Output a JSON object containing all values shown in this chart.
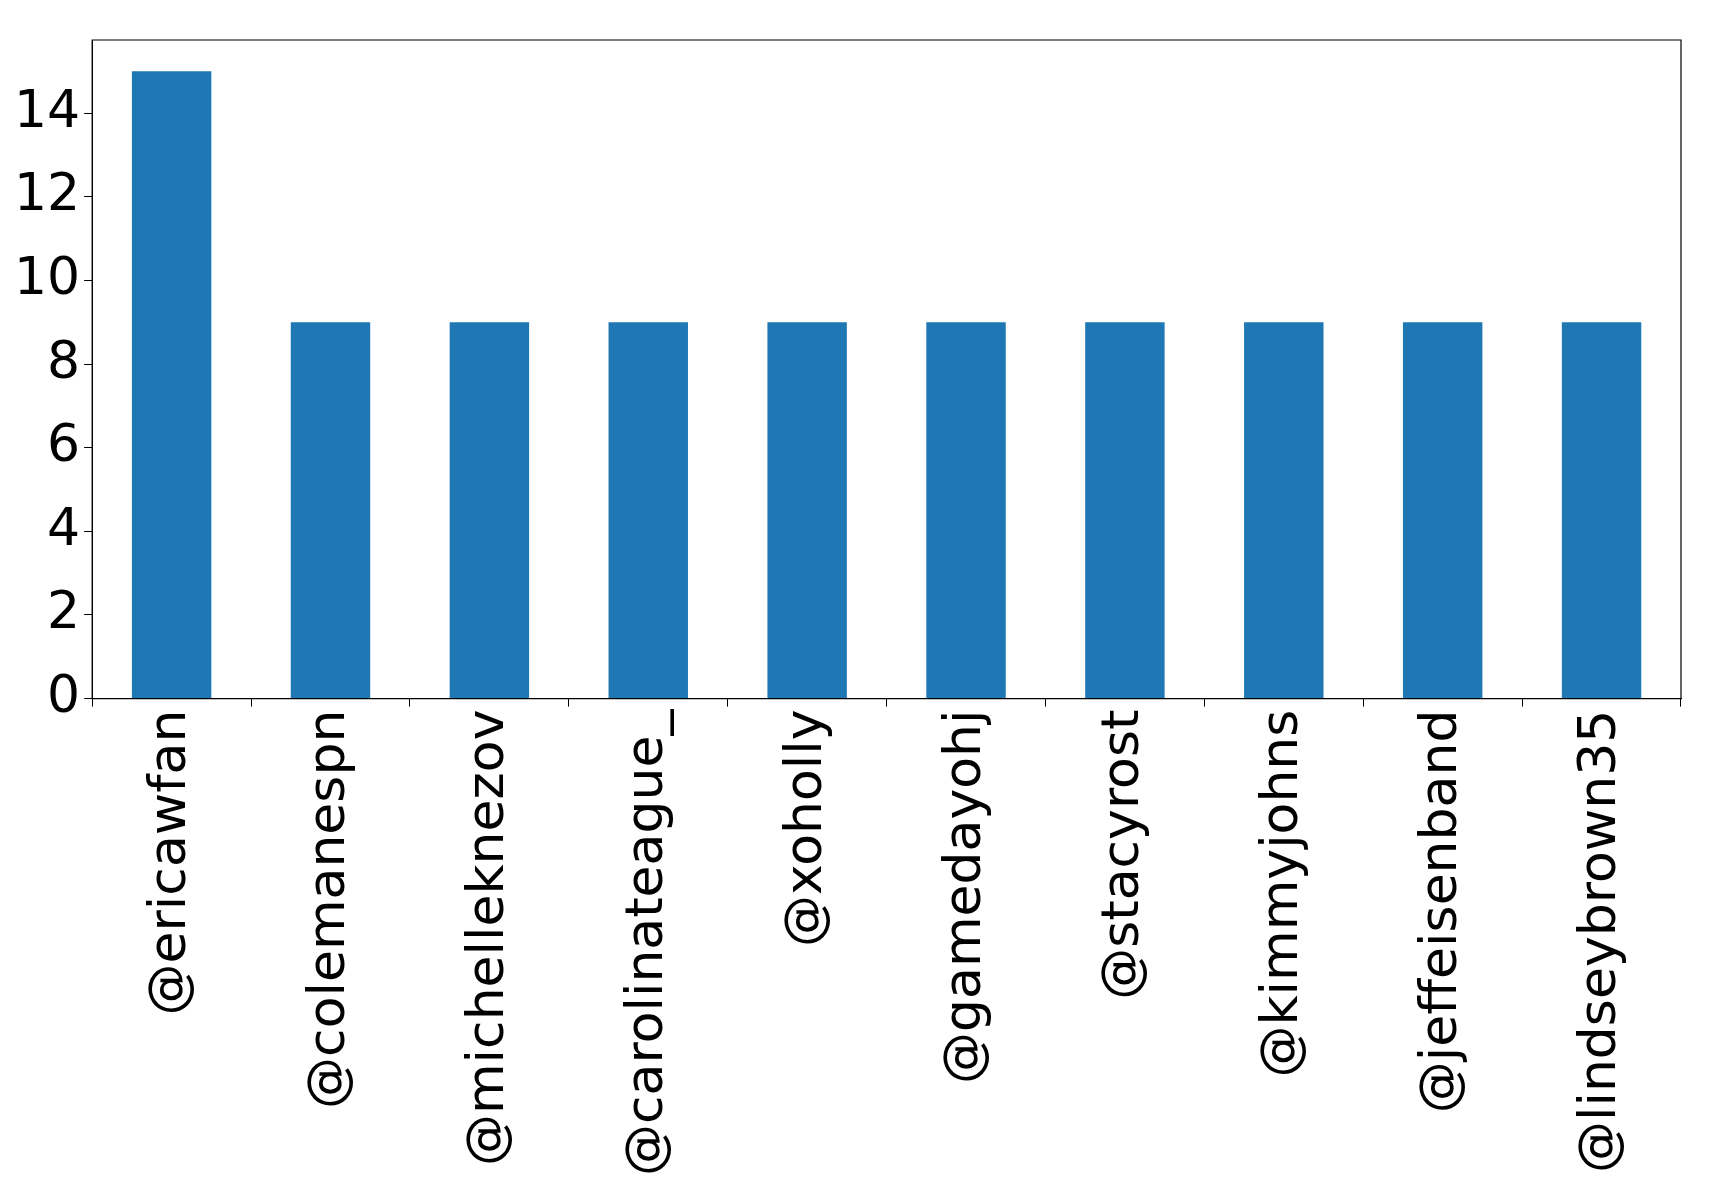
{
  "chart_data": {
    "type": "bar",
    "categories": [
      "@ericawfan",
      "@colemanespn",
      "@michelleknezov",
      "@carolinateague_",
      "@xoholly",
      "@gamedayohj",
      "@stacyrost",
      "@kimmyjohns",
      "@jeffeisenband",
      "@lindseybrown35"
    ],
    "values": [
      15,
      9,
      9,
      9,
      9,
      9,
      9,
      9,
      9,
      9
    ],
    "color": "#1f77b4",
    "ylim": [
      0,
      15.75
    ],
    "yticks": [
      0,
      2,
      4,
      6,
      8,
      10,
      12,
      14
    ],
    "grid": false,
    "legend": false
  }
}
